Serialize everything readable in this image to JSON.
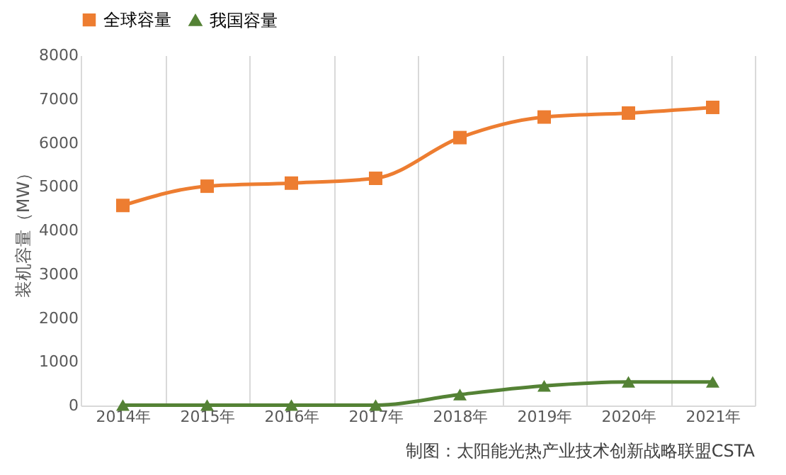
{
  "chart_data": {
    "type": "line",
    "categories": [
      "2014年",
      "2015年",
      "2016年",
      "2017年",
      "2018年",
      "2019年",
      "2020年",
      "2021年"
    ],
    "series": [
      {
        "name": "全球容量",
        "color": "#ed7d31",
        "marker": "square",
        "values": [
          4570,
          5010,
          5080,
          5190,
          6120,
          6590,
          6680,
          6810
        ]
      },
      {
        "name": "我国容量",
        "color": "#548235",
        "marker": "triangle",
        "values": [
          10,
          10,
          10,
          10,
          250,
          450,
          540,
          540
        ]
      }
    ],
    "ylabel": "装机容量（MW）",
    "ylim": [
      0,
      8000
    ],
    "yticks": [
      0,
      1000,
      2000,
      3000,
      4000,
      5000,
      6000,
      7000,
      8000
    ],
    "grid": "x",
    "legend": "top",
    "line_style": "solid",
    "annotations": [
      "制图：太阳能光热产业技术创新战略联盟CSTA"
    ]
  }
}
